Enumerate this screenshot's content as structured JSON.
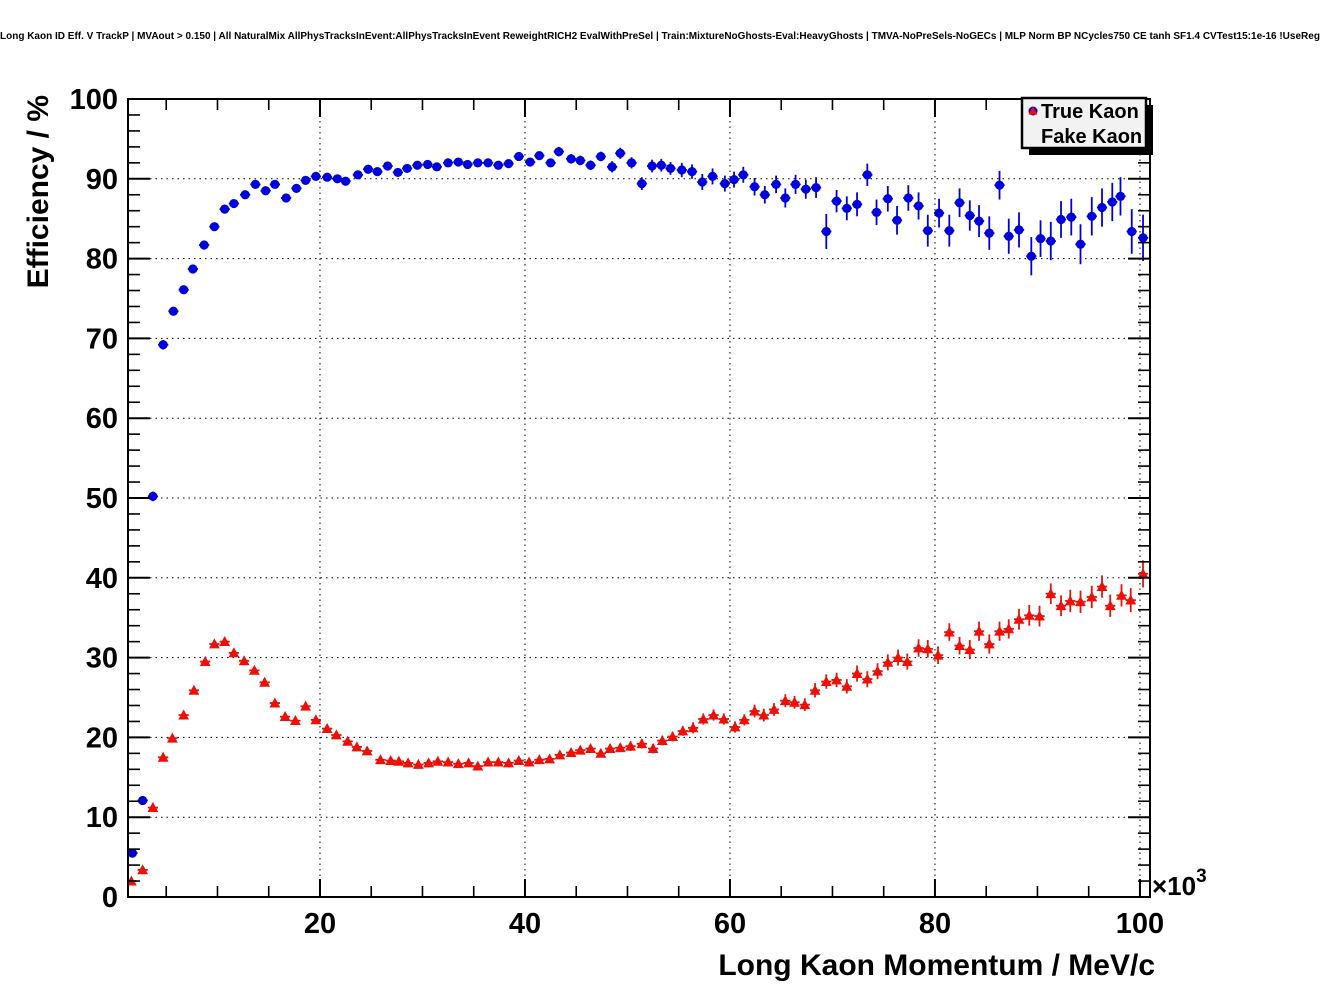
{
  "chart_data": {
    "type": "scatter",
    "title": "Long Kaon ID Eff. V TrackP | MVAout > 0.150 | All NaturalMix AllPhysTracksInEvent:AllPhysTracksInEvent ReweightRICH2 EvalWithPreSel | Train:MixtureNoGhosts-Eval:HeavyGhosts | TMVA-NoPreSels-NoGECs | MLP Norm BP NCycles750 CE tanh SF1.4 CVTest15:1e-16 !UseReg",
    "xlabel": "Long Kaon Momentum / MeV/c",
    "ylabel": "Efficiency / %",
    "x_exponent": {
      "base": "×10",
      "power": "3"
    },
    "xlim": [
      1.27,
      100.98
    ],
    "ylim": [
      0,
      100
    ],
    "x_ticks": [
      20,
      40,
      60,
      80,
      100
    ],
    "x_minor_step": 5,
    "y_ticks": [
      0,
      10,
      20,
      30,
      40,
      50,
      60,
      70,
      80,
      90,
      100
    ],
    "y_minor_step": 2,
    "grid": "dotted",
    "frame_color": "#000000",
    "legend": {
      "position": "top-right",
      "entries": [
        {
          "label": "True Kaon",
          "marker": "circle-icon",
          "color": "#0000dd"
        },
        {
          "label": "Fake Kaon",
          "marker": "triangle-icon",
          "color": "#ec1009"
        }
      ]
    },
    "series": [
      {
        "name": "True Kaon",
        "marker": "circle",
        "color": "#0000dd",
        "xerr": 0.5,
        "points": [
          [
            1.7,
            5.5,
            0.4
          ],
          [
            2.7,
            12.1,
            0.5
          ],
          [
            3.7,
            50.2,
            0.6
          ],
          [
            4.7,
            69.2,
            0.6
          ],
          [
            5.7,
            73.4,
            0.5
          ],
          [
            6.7,
            76.1,
            0.5
          ],
          [
            7.6,
            78.7,
            0.5
          ],
          [
            8.7,
            81.7,
            0.5
          ],
          [
            9.7,
            84.0,
            0.4
          ],
          [
            10.7,
            86.2,
            0.4
          ],
          [
            11.6,
            86.9,
            0.4
          ],
          [
            12.7,
            88.0,
            0.4
          ],
          [
            13.7,
            89.3,
            0.4
          ],
          [
            14.7,
            88.5,
            0.4
          ],
          [
            15.6,
            89.3,
            0.4
          ],
          [
            16.7,
            87.6,
            0.4
          ],
          [
            17.7,
            88.8,
            0.4
          ],
          [
            18.6,
            89.8,
            0.4
          ],
          [
            19.6,
            90.3,
            0.4
          ],
          [
            20.7,
            90.2,
            0.4
          ],
          [
            21.7,
            90.0,
            0.4
          ],
          [
            22.5,
            89.7,
            0.4
          ],
          [
            23.7,
            90.5,
            0.4
          ],
          [
            24.7,
            91.2,
            0.4
          ],
          [
            25.6,
            90.9,
            0.4
          ],
          [
            26.6,
            91.6,
            0.4
          ],
          [
            27.6,
            90.8,
            0.4
          ],
          [
            28.5,
            91.3,
            0.4
          ],
          [
            29.5,
            91.7,
            0.4
          ],
          [
            30.5,
            91.8,
            0.4
          ],
          [
            31.4,
            91.5,
            0.4
          ],
          [
            32.5,
            92.0,
            0.4
          ],
          [
            33.5,
            92.1,
            0.4
          ],
          [
            34.4,
            91.8,
            0.4
          ],
          [
            35.4,
            92.0,
            0.4
          ],
          [
            36.4,
            92.0,
            0.4
          ],
          [
            37.4,
            91.7,
            0.5
          ],
          [
            38.4,
            91.9,
            0.5
          ],
          [
            39.4,
            92.8,
            0.5
          ],
          [
            40.5,
            92.1,
            0.5
          ],
          [
            41.4,
            92.9,
            0.5
          ],
          [
            42.5,
            92.0,
            0.5
          ],
          [
            43.3,
            93.4,
            0.6
          ],
          [
            44.5,
            92.5,
            0.6
          ],
          [
            45.4,
            92.3,
            0.6
          ],
          [
            46.4,
            91.7,
            0.6
          ],
          [
            47.4,
            92.8,
            0.6
          ],
          [
            48.5,
            91.5,
            0.7
          ],
          [
            49.3,
            93.2,
            0.7
          ],
          [
            50.4,
            92.0,
            0.7
          ],
          [
            51.4,
            89.4,
            0.8
          ],
          [
            52.4,
            91.6,
            0.8
          ],
          [
            53.3,
            91.7,
            0.8
          ],
          [
            54.2,
            91.3,
            0.8
          ],
          [
            55.3,
            91.1,
            0.9
          ],
          [
            56.3,
            90.9,
            0.9
          ],
          [
            57.3,
            89.6,
            1.0
          ],
          [
            58.3,
            90.3,
            1.0
          ],
          [
            59.5,
            89.4,
            1.0
          ],
          [
            60.4,
            89.9,
            1.0
          ],
          [
            61.3,
            90.5,
            1.0
          ],
          [
            62.4,
            89.0,
            1.1
          ],
          [
            63.4,
            88.0,
            1.1
          ],
          [
            64.5,
            89.3,
            1.1
          ],
          [
            65.4,
            87.6,
            1.2
          ],
          [
            66.4,
            89.3,
            1.2
          ],
          [
            67.4,
            88.7,
            1.2
          ],
          [
            68.4,
            88.9,
            1.3
          ],
          [
            69.4,
            83.4,
            2.2
          ],
          [
            70.4,
            87.2,
            1.4
          ],
          [
            71.4,
            86.3,
            1.5
          ],
          [
            72.4,
            86.8,
            1.5
          ],
          [
            73.4,
            90.5,
            1.4
          ],
          [
            74.3,
            85.8,
            1.6
          ],
          [
            75.4,
            87.5,
            1.6
          ],
          [
            76.3,
            84.8,
            1.8
          ],
          [
            77.4,
            87.6,
            1.6
          ],
          [
            78.4,
            86.6,
            1.7
          ],
          [
            79.3,
            83.5,
            2.0
          ],
          [
            80.4,
            85.7,
            1.8
          ],
          [
            81.4,
            83.5,
            2.0
          ],
          [
            82.4,
            87.0,
            1.8
          ],
          [
            83.4,
            85.4,
            1.9
          ],
          [
            84.3,
            84.7,
            2.0
          ],
          [
            85.3,
            83.2,
            2.1
          ],
          [
            86.3,
            89.2,
            1.8
          ],
          [
            87.2,
            82.8,
            2.2
          ],
          [
            88.2,
            83.6,
            2.2
          ],
          [
            89.4,
            80.3,
            2.4
          ],
          [
            90.3,
            82.5,
            2.3
          ],
          [
            91.3,
            82.2,
            2.4
          ],
          [
            92.3,
            84.9,
            2.3
          ],
          [
            93.3,
            85.2,
            2.3
          ],
          [
            94.2,
            81.8,
            2.5
          ],
          [
            95.3,
            85.3,
            2.4
          ],
          [
            96.3,
            86.4,
            2.4
          ],
          [
            97.3,
            87.1,
            2.4
          ],
          [
            98.1,
            87.8,
            2.4
          ],
          [
            99.2,
            83.4,
            2.8
          ],
          [
            100.3,
            82.6,
            2.9
          ]
        ]
      },
      {
        "name": "Fake Kaon",
        "marker": "triangle",
        "color": "#ec1009",
        "xerr": 0.5,
        "points": [
          [
            1.6,
            2.0,
            0.3
          ],
          [
            2.7,
            3.4,
            0.3
          ],
          [
            3.7,
            11.2,
            0.5
          ],
          [
            4.7,
            17.5,
            0.5
          ],
          [
            5.6,
            19.9,
            0.5
          ],
          [
            6.7,
            22.8,
            0.5
          ],
          [
            7.7,
            25.9,
            0.5
          ],
          [
            8.8,
            29.5,
            0.5
          ],
          [
            9.7,
            31.7,
            0.5
          ],
          [
            10.7,
            32.0,
            0.5
          ],
          [
            11.6,
            30.6,
            0.5
          ],
          [
            12.6,
            29.6,
            0.5
          ],
          [
            13.6,
            28.4,
            0.5
          ],
          [
            14.6,
            26.9,
            0.5
          ],
          [
            15.6,
            24.3,
            0.5
          ],
          [
            16.6,
            22.6,
            0.5
          ],
          [
            17.6,
            22.1,
            0.5
          ],
          [
            18.6,
            23.9,
            0.5
          ],
          [
            19.6,
            22.2,
            0.5
          ],
          [
            20.7,
            21.1,
            0.5
          ],
          [
            21.6,
            20.3,
            0.5
          ],
          [
            22.7,
            19.5,
            0.4
          ],
          [
            23.6,
            18.8,
            0.4
          ],
          [
            24.6,
            18.3,
            0.4
          ],
          [
            25.9,
            17.2,
            0.4
          ],
          [
            26.9,
            17.1,
            0.4
          ],
          [
            27.7,
            17.0,
            0.4
          ],
          [
            28.6,
            16.8,
            0.4
          ],
          [
            29.6,
            16.6,
            0.4
          ],
          [
            30.6,
            16.8,
            0.4
          ],
          [
            31.5,
            17.0,
            0.4
          ],
          [
            32.5,
            16.9,
            0.4
          ],
          [
            33.5,
            16.7,
            0.4
          ],
          [
            34.5,
            16.8,
            0.4
          ],
          [
            35.4,
            16.4,
            0.4
          ],
          [
            36.4,
            16.9,
            0.4
          ],
          [
            37.4,
            16.9,
            0.4
          ],
          [
            38.4,
            16.8,
            0.4
          ],
          [
            39.4,
            17.1,
            0.4
          ],
          [
            40.4,
            16.9,
            0.4
          ],
          [
            41.4,
            17.2,
            0.4
          ],
          [
            42.4,
            17.3,
            0.5
          ],
          [
            43.4,
            17.8,
            0.5
          ],
          [
            44.5,
            18.1,
            0.5
          ],
          [
            45.4,
            18.4,
            0.5
          ],
          [
            46.4,
            18.6,
            0.5
          ],
          [
            47.4,
            18.0,
            0.5
          ],
          [
            48.3,
            18.6,
            0.5
          ],
          [
            49.3,
            18.7,
            0.5
          ],
          [
            50.3,
            18.9,
            0.6
          ],
          [
            51.4,
            19.2,
            0.6
          ],
          [
            52.5,
            18.6,
            0.6
          ],
          [
            53.4,
            19.6,
            0.6
          ],
          [
            54.4,
            20.1,
            0.6
          ],
          [
            55.4,
            20.8,
            0.6
          ],
          [
            56.4,
            21.2,
            0.7
          ],
          [
            57.4,
            22.3,
            0.7
          ],
          [
            58.4,
            22.8,
            0.7
          ],
          [
            59.4,
            22.3,
            0.7
          ],
          [
            60.5,
            21.3,
            0.7
          ],
          [
            61.4,
            22.2,
            0.7
          ],
          [
            62.4,
            23.3,
            0.8
          ],
          [
            63.3,
            22.8,
            0.8
          ],
          [
            64.3,
            23.5,
            0.8
          ],
          [
            65.4,
            24.6,
            0.8
          ],
          [
            66.3,
            24.4,
            0.8
          ],
          [
            67.3,
            24.1,
            0.8
          ],
          [
            68.3,
            25.9,
            0.9
          ],
          [
            69.4,
            27.0,
            0.9
          ],
          [
            70.4,
            27.2,
            0.9
          ],
          [
            71.4,
            26.4,
            0.9
          ],
          [
            72.4,
            28.0,
            1.0
          ],
          [
            73.4,
            27.3,
            1.0
          ],
          [
            74.4,
            28.3,
            1.0
          ],
          [
            75.4,
            29.4,
            1.0
          ],
          [
            76.4,
            30.0,
            1.0
          ],
          [
            77.3,
            29.5,
            1.0
          ],
          [
            78.4,
            31.2,
            1.1
          ],
          [
            79.3,
            31.1,
            1.1
          ],
          [
            80.3,
            30.3,
            1.1
          ],
          [
            81.4,
            33.2,
            1.1
          ],
          [
            82.4,
            31.5,
            1.1
          ],
          [
            83.4,
            31.0,
            1.2
          ],
          [
            84.3,
            33.3,
            1.2
          ],
          [
            85.3,
            31.7,
            1.2
          ],
          [
            86.3,
            33.3,
            1.2
          ],
          [
            87.2,
            33.6,
            1.2
          ],
          [
            88.2,
            34.8,
            1.3
          ],
          [
            89.2,
            35.3,
            1.3
          ],
          [
            90.2,
            35.2,
            1.3
          ],
          [
            91.3,
            38.0,
            1.3
          ],
          [
            92.3,
            36.5,
            1.3
          ],
          [
            93.2,
            37.1,
            1.4
          ],
          [
            94.2,
            37.0,
            1.4
          ],
          [
            95.3,
            37.6,
            1.4
          ],
          [
            96.3,
            38.9,
            1.4
          ],
          [
            97.1,
            36.5,
            1.4
          ],
          [
            98.2,
            37.8,
            1.4
          ],
          [
            99.1,
            37.2,
            1.5
          ],
          [
            100.3,
            40.5,
            1.7
          ]
        ]
      }
    ]
  }
}
